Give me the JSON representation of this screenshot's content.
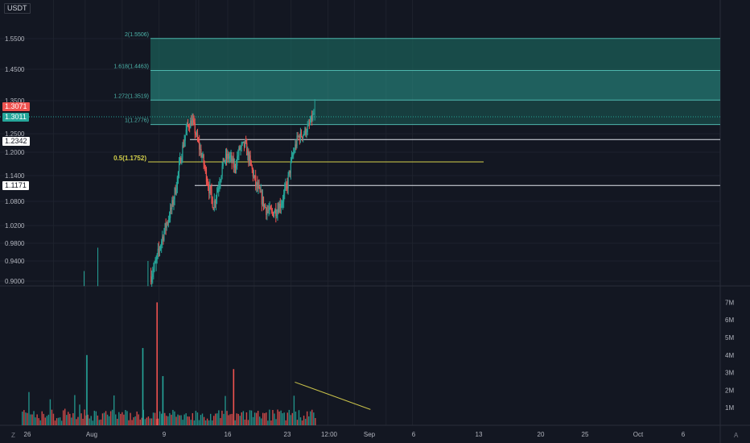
{
  "price_scale": {
    "currency": "USDT",
    "ticks": [
      "1.5500",
      "1.4500",
      "1.3500",
      "1.2500",
      "1.2000",
      "1.1400",
      "1.0800",
      "1.0200",
      "0.9800",
      "0.9400",
      "0.9000"
    ],
    "tick_values": [
      1.55,
      1.45,
      1.35,
      1.25,
      1.2,
      1.14,
      1.08,
      1.02,
      0.98,
      0.94,
      0.9
    ],
    "last_price_label": "1.3071",
    "last_price": 1.3071,
    "second_price_label": "1.3011",
    "second_price": 1.3011,
    "level_a_label": "1.2342",
    "level_a": 1.2342,
    "level_b_label": "1.1171",
    "level_b": 1.1171
  },
  "volume_scale": {
    "ticks": [
      "7M",
      "6M",
      "5M",
      "4M",
      "3M",
      "2M",
      "1M"
    ],
    "tick_values": [
      7,
      6,
      5,
      4,
      3,
      2,
      1
    ]
  },
  "time_axis": {
    "labels": [
      "26",
      "Aug",
      "9",
      "16",
      "23",
      "12:00",
      "Sep",
      "6",
      "13",
      "20",
      "25",
      "Oct",
      "6"
    ],
    "positions": [
      8,
      14,
      21,
      28,
      35,
      35.5,
      41,
      46,
      53,
      60,
      65,
      71,
      76
    ]
  },
  "fib_levels": [
    {
      "label": "2(1.5506)",
      "value": 1.5506
    },
    {
      "label": "1.618(1.4463)",
      "value": 1.4463
    },
    {
      "label": "1.272(1.3519)",
      "value": 1.3519
    },
    {
      "label": "1(1.2776)",
      "value": 1.2776
    },
    {
      "label": "0.5(1.1752)",
      "value": 1.1752
    }
  ],
  "colors": {
    "background": "#131722",
    "grid": "#1e222d",
    "up": "#26a69a",
    "down": "#ef5350",
    "fib_zone": "#1b5e57",
    "fib_zone_mid": "#2a9d8f",
    "fib_line": "#4db6ac",
    "fib_half": "#d4d04a",
    "trendline": "#c9c24a",
    "level_line": "#e0e3eb"
  },
  "corner_icons": [
    "z-icon",
    "a-icon"
  ],
  "chart_data": {
    "type": "candlestick",
    "title": "",
    "xlabel": "",
    "ylabel": "",
    "x_axis": "days from 23 Jul",
    "ylim": [
      0.89,
      1.6
    ],
    "volume_ylim": [
      0,
      7.5
    ],
    "series": [
      {
        "name": "",
        "start": 26,
        "end": 34,
        "first": 0.91,
        "last": 1.3,
        "high": 1.3,
        "low": 0.89
      },
      {
        "name": "",
        "start": 34,
        "end": 38,
        "first": 1.3,
        "last": 1.06,
        "high": 1.3,
        "low": 1.06
      },
      {
        "name": "",
        "start": 38,
        "end": 40,
        "first": 1.06,
        "last": 1.22,
        "high": 1.24,
        "low": 1.06
      },
      {
        "name": "",
        "start": 40,
        "end": 44,
        "first": 1.22,
        "last": 1.03,
        "high": 1.24,
        "low": 1.01
      },
      {
        "name": "",
        "start": 44,
        "end": 52,
        "first": 1.03,
        "last": 1.32,
        "high": 1.35,
        "low": 1.02
      }
    ],
    "anchors": [
      [
        26,
        0.91
      ],
      [
        27,
        0.93
      ],
      [
        28,
        0.98
      ],
      [
        29,
        1.02
      ],
      [
        30,
        1.06
      ],
      [
        31,
        1.12
      ],
      [
        32,
        1.2
      ],
      [
        33,
        1.27
      ],
      [
        34,
        1.29
      ],
      [
        35,
        1.23
      ],
      [
        36,
        1.18
      ],
      [
        37,
        1.12
      ],
      [
        38,
        1.07
      ],
      [
        39,
        1.12
      ],
      [
        40,
        1.18
      ],
      [
        41,
        1.19
      ],
      [
        42,
        1.16
      ],
      [
        43,
        1.21
      ],
      [
        44,
        1.22
      ],
      [
        45,
        1.17
      ],
      [
        46,
        1.12
      ],
      [
        47,
        1.09
      ],
      [
        48,
        1.06
      ],
      [
        49,
        1.05
      ],
      [
        50,
        1.06
      ],
      [
        51,
        1.08
      ],
      [
        52,
        1.12
      ],
      [
        53,
        1.19
      ],
      [
        54,
        1.24
      ],
      [
        55,
        1.25
      ],
      [
        56,
        1.27
      ],
      [
        57,
        1.31
      ]
    ],
    "volume_highlights": [
      {
        "x": 14.2,
        "value": 4.0
      },
      {
        "x": 24.8,
        "value": 4.4
      },
      {
        "x": 27.5,
        "value": 7.0
      },
      {
        "x": 28.6,
        "value": 2.8
      },
      {
        "x": 42.0,
        "value": 3.2
      }
    ],
    "volume_trendline": [
      [
        40,
        3.1
      ],
      [
        56,
        0.9
      ]
    ],
    "horizontal_levels": [
      1.2342,
      1.1171
    ],
    "fib_zone": {
      "top": 1.5506,
      "bottom": 1.2776
    },
    "grid": true,
    "legend": "none"
  }
}
